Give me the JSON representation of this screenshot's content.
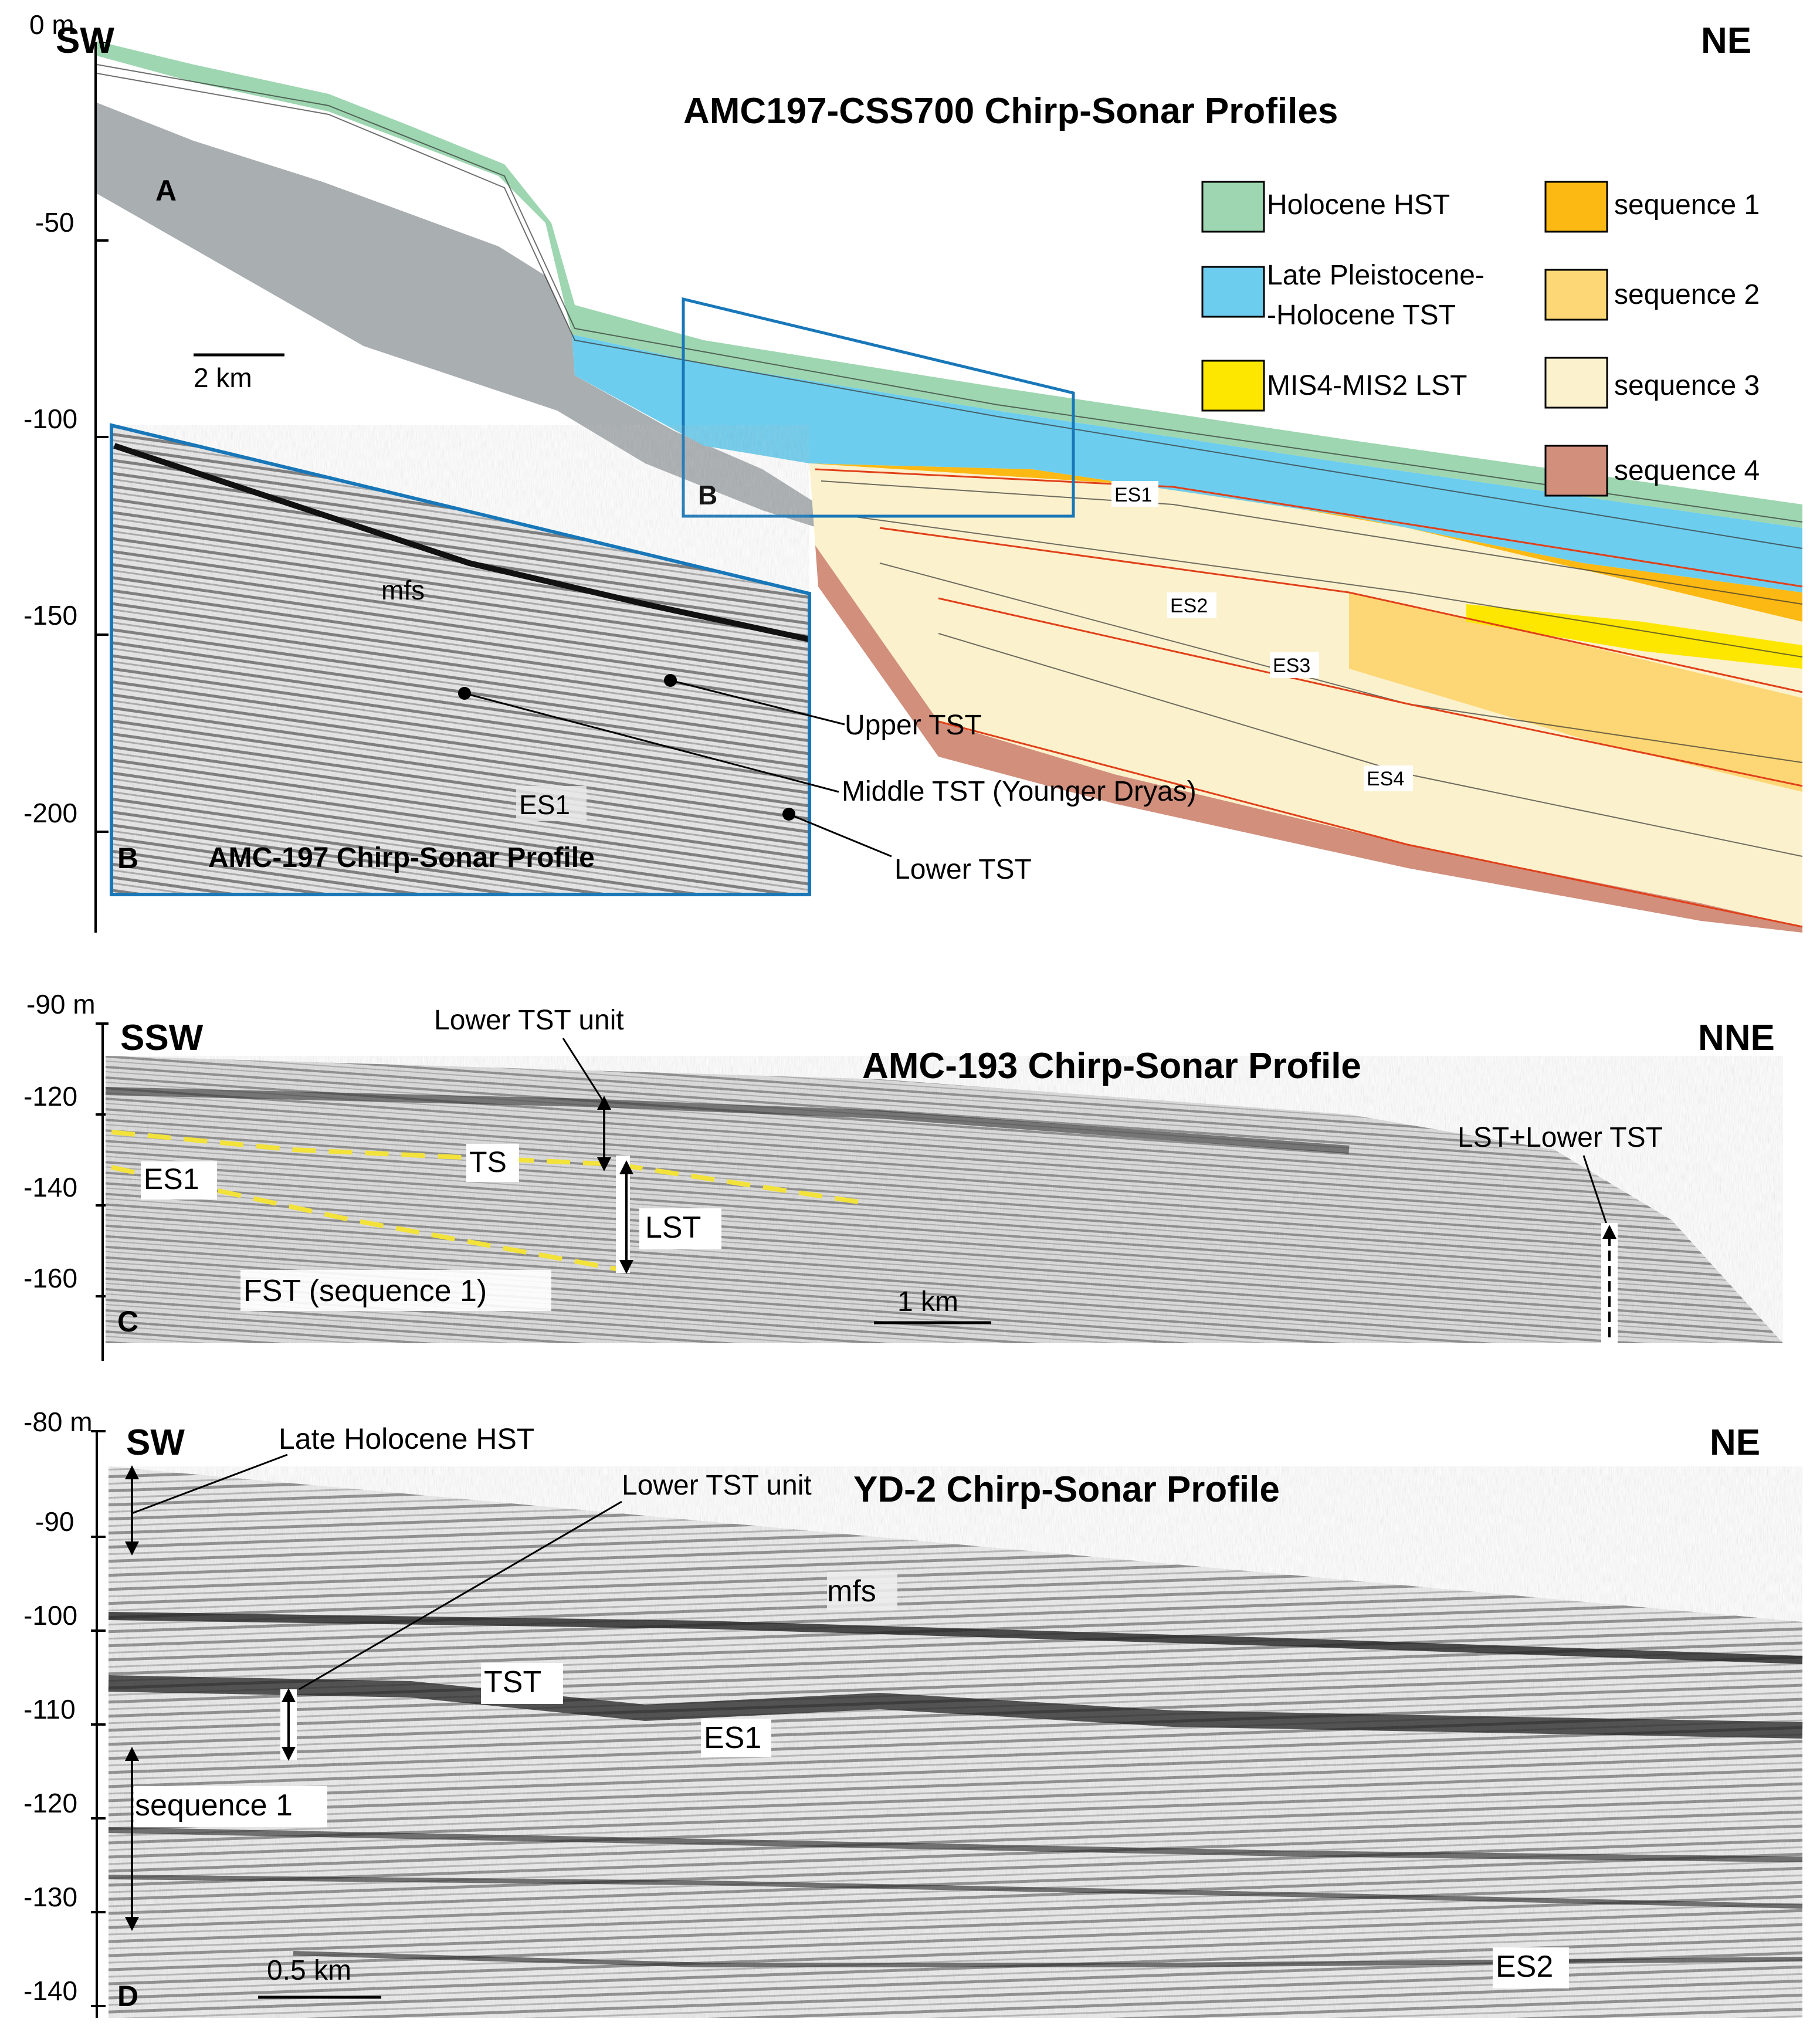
{
  "panel_a": {
    "depth_labels": [
      "0 m",
      "-50",
      "-100",
      "-150",
      "-200"
    ],
    "dir_left": "SW",
    "dir_right": "NE",
    "title": "AMC197-CSS700 Chirp-Sonar Profiles",
    "letter": "A",
    "box_letter": "B",
    "scale": "2 km",
    "surfaces": [
      "ES1",
      "ES2",
      "ES3",
      "ES4"
    ]
  },
  "legend": {
    "items": [
      {
        "label": "Holocene HST",
        "color": "#9dd6b0"
      },
      {
        "label_l1": "Late Pleistocene-",
        "label_l2": "-Holocene TST",
        "color": "#6dcdee"
      },
      {
        "label": "MIS4-MIS2 LST",
        "color": "#fde600"
      },
      {
        "label": "sequence 1",
        "color": "#fcb813"
      },
      {
        "label": "sequence 2",
        "color": "#fdd775"
      },
      {
        "label": "sequence 3",
        "color": "#fbf1cc"
      },
      {
        "label": "sequence 4",
        "color": "#d18f7c"
      }
    ]
  },
  "panel_b": {
    "letter": "B",
    "title": "AMC-197 Chirp-Sonar Profile",
    "mfs": "mfs",
    "es1": "ES1",
    "callouts": [
      "Upper TST",
      "Middle TST (Younger Dryas)",
      "Lower TST"
    ]
  },
  "panel_c": {
    "depth_labels": [
      "-90 m",
      "-120",
      "-140",
      "-160"
    ],
    "dir_left": "SSW",
    "dir_right": "NNE",
    "title": "AMC-193 Chirp-Sonar Profile",
    "letter": "C",
    "lower_tst": "Lower TST unit",
    "ts": "TS",
    "es1": "ES1",
    "lst": "LST",
    "fst": "FST (sequence 1)",
    "lst_lower": "LST+Lower TST",
    "scale": "1 km"
  },
  "panel_d": {
    "depth_labels": [
      "-80 m",
      "-90",
      "-100",
      "-110",
      "-120",
      "-130",
      "-140"
    ],
    "dir_left": "SW",
    "dir_right": "NE",
    "title": "YD-2 Chirp-Sonar Profile",
    "letter": "D",
    "late_holocene": "Late Holocene HST",
    "lower_tst": "Lower TST unit",
    "mfs": "mfs",
    "tst": "TST",
    "es1": "ES1",
    "seq1": "sequence 1",
    "es2": "ES2",
    "scale": "0.5 km"
  }
}
